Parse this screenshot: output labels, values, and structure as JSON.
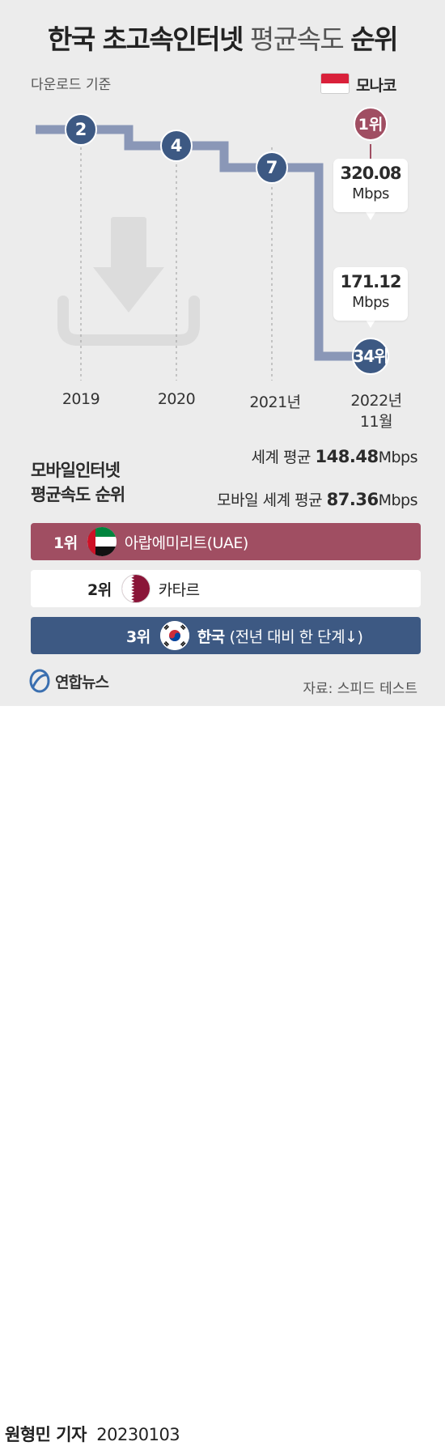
{
  "title": {
    "bold_part": "한국 초고속인터넷",
    "light_part": "평균속도",
    "bold_end": "순위"
  },
  "basis": "다운로드 기준",
  "colors": {
    "line": "#8a97b7",
    "marker": "#3d5983",
    "monaco": "#a04e62",
    "uae": "#a04e62",
    "qatar_row": "#ffffff",
    "korea_row": "#3d5983"
  },
  "chart_data": {
    "type": "line",
    "title": "한국 초고속인터넷 평균속도 순위",
    "subtitle": "다운로드 기준",
    "series": [
      {
        "name": "",
        "values": [
          2,
          4,
          7,
          34
        ]
      }
    ],
    "categories": [
      "2019",
      "2020",
      "2021년",
      "2022년 11월"
    ],
    "point_labels": [
      "2",
      "4",
      "7",
      "34위"
    ],
    "ylabel": "",
    "xlabel": "",
    "y_inverted": true,
    "comparison": {
      "country": "모나코",
      "rank_label": "1위",
      "speed": "320.08",
      "unit": "Mbps"
    },
    "korea_speed": {
      "speed": "171.12",
      "unit": "Mbps"
    }
  },
  "monaco": {
    "name": "모나코",
    "flag_icon": "monaco-flag-icon"
  },
  "world_avg": {
    "label": "세계 평균",
    "value": "148.48",
    "unit": "Mbps"
  },
  "mobile_avg": {
    "label": "모바일 세계 평균",
    "value": "87.36",
    "unit": "Mbps"
  },
  "mobile_ranking": {
    "title_line1": "모바일인터넷",
    "title_line2": "평균속도 순위",
    "rows": [
      {
        "rank": "1위",
        "country": "아랍에미리트(UAE)",
        "flag_icon": "uae-flag-icon"
      },
      {
        "rank": "2위",
        "country": "카타르",
        "flag_icon": "qatar-flag-icon"
      },
      {
        "rank": "3위",
        "country": "한국",
        "note": "(전년 대비 한 단계↓)",
        "flag_icon": "korea-flag-icon"
      }
    ]
  },
  "logo": {
    "name": "연합뉴스"
  },
  "source": "자료: 스피드 테스트",
  "reporter": {
    "name": "원형민 기자",
    "date": "20230103"
  }
}
